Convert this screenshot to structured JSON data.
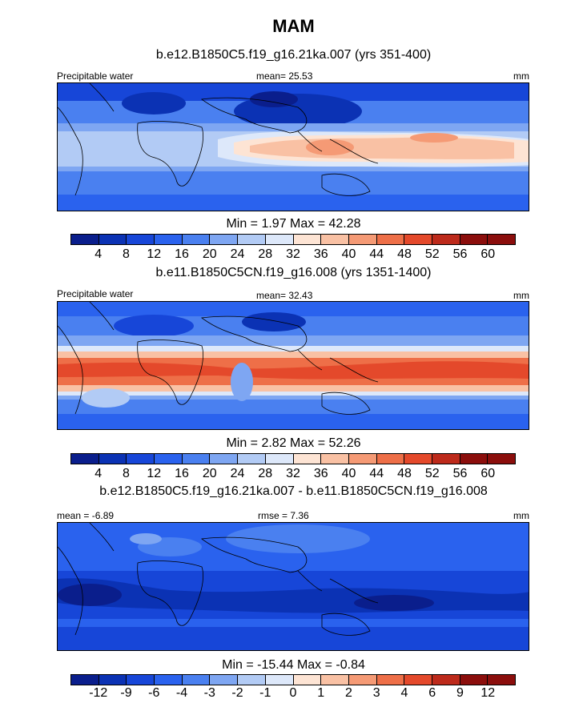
{
  "title": "MAM",
  "colors": {
    "palette": [
      "#0a1e8c",
      "#0b32b4",
      "#1746d8",
      "#2a62ee",
      "#4a80f0",
      "#7ea6f2",
      "#b2cbf5",
      "#dde8fa",
      "#fde4d4",
      "#f9c1a4",
      "#f59a75",
      "#ee6f48",
      "#e4492b",
      "#bd2a1b",
      "#8b0e0c"
    ],
    "land_outline": "#000000"
  },
  "panels": [
    {
      "title": "b.e12.B1850C5.f19_g16.21ka.007 (yrs 351-400)",
      "left_label": "Precipitable water",
      "center_label": "mean=  25.53",
      "right_label": "mm",
      "minmax": "Min =   1.97 Max =  42.28"
    },
    {
      "title": "b.e11.B1850C5CN.f19_g16.008 (yrs 1351-1400)",
      "left_label": "Precipitable water",
      "center_label": "mean=  32.43",
      "right_label": "mm",
      "minmax": "Min =   2.82 Max =  52.26"
    },
    {
      "title": "b.e12.B1850C5.f19_g16.21ka.007 - b.e11.B1850C5CN.f19_g16.008",
      "left_label": "mean =  -6.89",
      "center_label": "rmse =  7.36",
      "right_label": "mm",
      "minmax": "Min = -15.44 Max =  -0.84"
    }
  ],
  "chart_data": [
    {
      "type": "heatmap",
      "title": "b.e12.B1850C5.f19_g16.21ka.007 (yrs 351-400)",
      "variable": "Precipitable water",
      "units": "mm",
      "mean": 25.53,
      "min": 1.97,
      "max": 42.28,
      "colorbar_levels": [
        4,
        8,
        12,
        16,
        20,
        24,
        28,
        32,
        36,
        40,
        44,
        48,
        52,
        56,
        60
      ],
      "colorbar_labels": [
        "4",
        "8",
        "12",
        "16",
        "20",
        "24",
        "28",
        "32",
        "36",
        "40",
        "44",
        "48",
        "52",
        "56",
        "60"
      ]
    },
    {
      "type": "heatmap",
      "title": "b.e11.B1850C5CN.f19_g16.008 (yrs 1351-1400)",
      "variable": "Precipitable water",
      "units": "mm",
      "mean": 32.43,
      "min": 2.82,
      "max": 52.26,
      "colorbar_levels": [
        4,
        8,
        12,
        16,
        20,
        24,
        28,
        32,
        36,
        40,
        44,
        48,
        52,
        56,
        60
      ],
      "colorbar_labels": [
        "4",
        "8",
        "12",
        "16",
        "20",
        "24",
        "28",
        "32",
        "36",
        "40",
        "44",
        "48",
        "52",
        "56",
        "60"
      ]
    },
    {
      "type": "heatmap",
      "title": "b.e12.B1850C5.f19_g16.21ka.007 - b.e11.B1850C5CN.f19_g16.008",
      "units": "mm",
      "mean": -6.89,
      "rmse": 7.36,
      "min": -15.44,
      "max": -0.84,
      "colorbar_levels": [
        -12,
        -9,
        -6,
        -4,
        -3,
        -2,
        -1,
        0,
        1,
        2,
        3,
        4,
        6,
        9,
        12
      ],
      "colorbar_labels": [
        "-12",
        "-9",
        "-6",
        "-4",
        "-3",
        "-2",
        "-1",
        "0",
        "1",
        "2",
        "3",
        "4",
        "6",
        "9",
        "12"
      ]
    }
  ]
}
